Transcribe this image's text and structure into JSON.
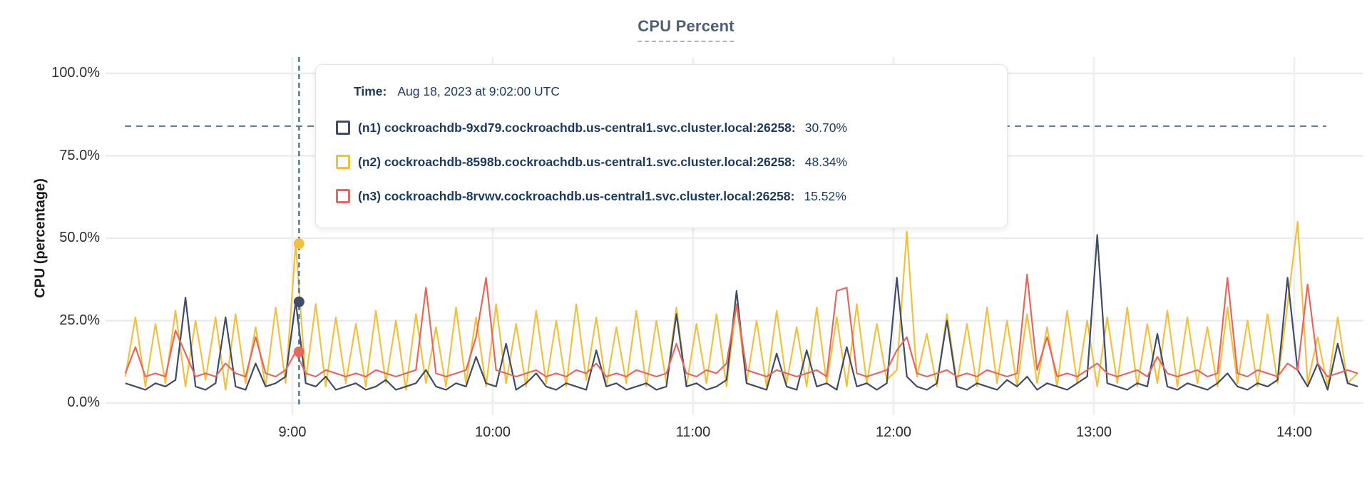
{
  "colors": {
    "series_n1": "#3f4c67",
    "series_n2": "#f1c13d",
    "series_n3": "#e4685e",
    "grid": "#ececec",
    "grid_vertical": "#f0f0f0",
    "threshold_line": "#54707f",
    "hover_line": "#54707f",
    "title_text": "#4e5f78",
    "tooltip_text": "#1c3a5e",
    "axis_text": "#2b2b2b"
  },
  "tooltip": {
    "time_label": "Time:",
    "time_value": "Aug 18, 2023 at 9:02:00 UTC",
    "rows": [
      {
        "label": "(n1) cockroachdb-9xd79.cockroachdb.us-central1.svc.cluster.local:26258:",
        "value": "30.70%",
        "color": "#3f4c67"
      },
      {
        "label": "(n2) cockroachdb-8598b.cockroachdb.us-central1.svc.cluster.local:26258:",
        "value": "48.34%",
        "color": "#f1c13d"
      },
      {
        "label": "(n3) cockroachdb-8rvwv.cockroachdb.us-central1.svc.cluster.local:26258:",
        "value": "15.52%",
        "color": "#e4685e"
      }
    ]
  },
  "chart_data": {
    "type": "line",
    "title": "CPU Percent",
    "ylabel": "CPU (percentage)",
    "ylim": [
      0,
      100
    ],
    "grid": true,
    "y_axis": {
      "ticks": [
        {
          "value": 0,
          "label": "0.0%"
        },
        {
          "value": 25,
          "label": "25.0%"
        },
        {
          "value": 50,
          "label": "50.0%"
        },
        {
          "value": 75,
          "label": "75.0%"
        },
        {
          "value": 100,
          "label": "100.0%"
        }
      ]
    },
    "x_axis": {
      "unit": "time of day (UTC)",
      "ticks": [
        {
          "minute": 540,
          "label": "9:00"
        },
        {
          "minute": 600,
          "label": "10:00"
        },
        {
          "minute": 660,
          "label": "11:00"
        },
        {
          "minute": 720,
          "label": "12:00"
        },
        {
          "minute": 780,
          "label": "13:00"
        },
        {
          "minute": 840,
          "label": "14:00"
        }
      ],
      "range_min": [
        490,
        859
      ]
    },
    "threshold": {
      "value_pct": 84,
      "style": "dashed"
    },
    "hover_marker": {
      "time_label": "Aug 18, 2023 at 9:02:00 UTC",
      "x_min": 542,
      "points": [
        {
          "series": "n1",
          "value_pct": 30.7
        },
        {
          "series": "n2",
          "value_pct": 48.34
        },
        {
          "series": "n3",
          "value_pct": 15.52
        }
      ]
    },
    "x_start_min": 490,
    "x_step_min": 3,
    "series": [
      {
        "id": "n1",
        "name": "(n1) cockroachdb-9xd79.cockroachdb.us-central1.svc.cluster.local:26258",
        "color": "#3f4c67",
        "values": [
          6,
          5,
          4,
          6,
          5,
          7,
          32,
          5,
          4,
          6,
          26,
          5,
          4,
          12,
          5,
          6,
          8,
          30.7,
          6,
          5,
          8,
          4,
          5,
          6,
          4,
          5,
          7,
          4,
          5,
          6,
          10,
          5,
          4,
          6,
          5,
          14,
          6,
          5,
          18,
          4,
          6,
          9,
          5,
          4,
          6,
          5,
          4,
          16,
          5,
          6,
          4,
          5,
          6,
          4,
          5,
          27,
          5,
          6,
          4,
          5,
          7,
          34,
          6,
          5,
          4,
          15,
          5,
          4,
          16,
          5,
          6,
          4,
          17,
          5,
          6,
          4,
          6,
          38,
          8,
          5,
          4,
          6,
          25,
          5,
          4,
          6,
          5,
          4,
          7,
          5,
          8,
          4,
          6,
          5,
          4,
          6,
          8,
          51,
          6,
          5,
          4,
          6,
          5,
          21,
          5,
          4,
          6,
          5,
          4,
          6,
          9,
          5,
          4,
          6,
          5,
          7,
          38,
          10,
          5,
          12,
          4,
          18,
          6,
          5
        ]
      },
      {
        "id": "n2",
        "name": "(n2) cockroachdb-8598b.cockroachdb.us-central1.svc.cluster.local:26258",
        "color": "#f1c13d",
        "values": [
          8,
          26,
          5,
          24,
          6,
          28,
          5,
          25,
          7,
          26,
          4,
          27,
          6,
          23,
          5,
          29,
          6,
          48.3,
          7,
          30,
          5,
          26,
          6,
          24,
          5,
          28,
          6,
          25,
          4,
          27,
          6,
          23,
          5,
          29,
          6,
          26,
          5,
          30,
          6,
          24,
          5,
          28,
          6,
          25,
          5,
          30,
          7,
          26,
          5,
          23,
          6,
          28,
          5,
          25,
          6,
          29,
          5,
          24,
          6,
          27,
          5,
          30,
          6,
          25,
          5,
          28,
          6,
          23,
          5,
          29,
          6,
          26,
          5,
          30,
          6,
          24,
          7,
          10,
          52,
          8,
          21,
          5,
          27,
          6,
          24,
          5,
          29,
          6,
          25,
          5,
          27,
          6,
          23,
          5,
          28,
          6,
          25,
          5,
          26,
          6,
          29,
          5,
          24,
          6,
          28,
          5,
          26,
          6,
          23,
          5,
          29,
          6,
          25,
          5,
          27,
          6,
          30,
          55,
          6,
          20,
          5,
          26,
          6,
          9
        ]
      },
      {
        "id": "n3",
        "name": "(n3) cockroachdb-8rvwv.cockroachdb.us-central1.svc.cluster.local:26258",
        "color": "#e4685e",
        "values": [
          9,
          17,
          8,
          9,
          8,
          22,
          15,
          8,
          9,
          8,
          12,
          9,
          8,
          20,
          9,
          8,
          10,
          15.5,
          9,
          8,
          10,
          9,
          8,
          9,
          8,
          10,
          9,
          8,
          9,
          10,
          35,
          9,
          8,
          9,
          10,
          20,
          38,
          10,
          9,
          8,
          9,
          10,
          8,
          9,
          8,
          10,
          9,
          12,
          8,
          9,
          8,
          10,
          9,
          8,
          9,
          18,
          9,
          8,
          10,
          9,
          12,
          30,
          10,
          9,
          8,
          10,
          9,
          8,
          9,
          10,
          8,
          34,
          35,
          9,
          8,
          9,
          10,
          16,
          20,
          9,
          8,
          9,
          10,
          8,
          9,
          8,
          10,
          9,
          8,
          9,
          39,
          10,
          20,
          8,
          9,
          8,
          10,
          12,
          9,
          8,
          9,
          10,
          8,
          14,
          9,
          8,
          9,
          10,
          8,
          9,
          38,
          9,
          8,
          10,
          9,
          8,
          12,
          10,
          36,
          12,
          8,
          9,
          10,
          9
        ]
      }
    ]
  }
}
